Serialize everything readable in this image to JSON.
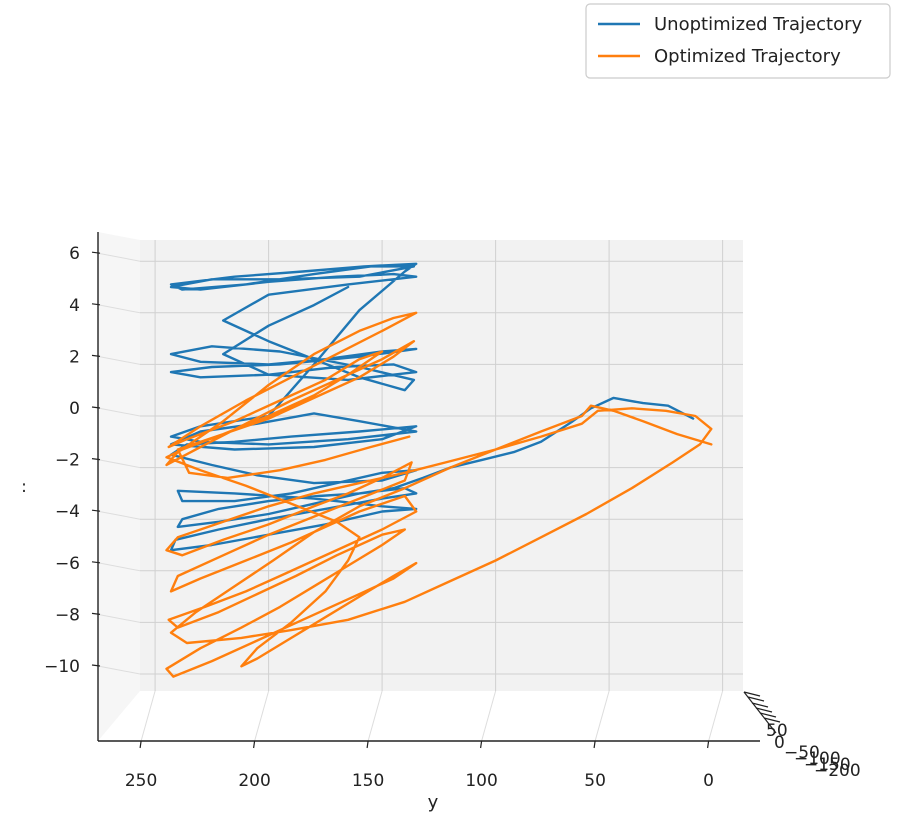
{
  "chart_data": {
    "type": "line",
    "projection": "3d",
    "title": "",
    "xlabel": "y",
    "ylabel": "",
    "zlabel": ":",
    "grid": true,
    "legend": "top-right",
    "colors": {
      "unoptimized": "#1f77b4",
      "optimized": "#ff7f0e",
      "pane": "#f2f2f2",
      "grid": "#d0d0d0"
    },
    "y_axis_ticks": [
      "250",
      "200",
      "150",
      "100",
      "50",
      "0"
    ],
    "y_range": [
      0,
      270
    ],
    "z_axis_ticks": [
      "6",
      "4",
      "2",
      "0",
      "−2",
      "−4",
      "−6",
      "−8",
      "−10"
    ],
    "z_range": [
      -11,
      7
    ],
    "x_axis_ticks": [
      "50",
      "0",
      "−50",
      "−100",
      "−150",
      "−200"
    ],
    "series": [
      {
        "name": "Unoptimized Trajectory",
        "color": "#1f77b4",
        "points": [
          [
            13,
            -0.1
          ],
          [
            24,
            0.4
          ],
          [
            35,
            0.5
          ],
          [
            48,
            0.7
          ],
          [
            58,
            0.3
          ],
          [
            66,
            -0.2
          ],
          [
            80,
            -1.0
          ],
          [
            92,
            -1.4
          ],
          [
            106,
            -1.7
          ],
          [
            120,
            -2.0
          ],
          [
            132,
            -2.4
          ],
          [
            145,
            -2.8
          ],
          [
            160,
            -3.0
          ],
          [
            178,
            -3.1
          ],
          [
            200,
            -3.3
          ],
          [
            222,
            -3.6
          ],
          [
            238,
            -4.0
          ],
          [
            240,
            -4.3
          ],
          [
            222,
            -4.1
          ],
          [
            200,
            -3.8
          ],
          [
            180,
            -3.4
          ],
          [
            160,
            -3.0
          ],
          [
            140,
            -2.8
          ],
          [
            135,
            -3.0
          ],
          [
            150,
            -3.2
          ],
          [
            175,
            -3.6
          ],
          [
            200,
            -4.0
          ],
          [
            222,
            -4.4
          ],
          [
            241,
            -4.8
          ],
          [
            243,
            -5.2
          ],
          [
            225,
            -5.0
          ],
          [
            200,
            -4.6
          ],
          [
            175,
            -4.2
          ],
          [
            150,
            -3.7
          ],
          [
            135,
            -3.6
          ],
          [
            150,
            -3.5
          ],
          [
            180,
            -3.2
          ],
          [
            215,
            -3.0
          ],
          [
            240,
            -2.9
          ],
          [
            238,
            -3.3
          ],
          [
            215,
            -3.3
          ],
          [
            190,
            -3.0
          ],
          [
            170,
            -2.6
          ],
          [
            150,
            -2.2
          ],
          [
            135,
            -2.1
          ],
          [
            150,
            -2.5
          ],
          [
            180,
            -2.6
          ],
          [
            205,
            -2.3
          ],
          [
            225,
            -1.9
          ],
          [
            243,
            -1.5
          ],
          [
            236,
            -1.1
          ],
          [
            215,
            -1.0
          ],
          [
            190,
            -0.8
          ],
          [
            160,
            -0.6
          ],
          [
            135,
            -0.4
          ],
          [
            150,
            -0.9
          ],
          [
            180,
            -1.2
          ],
          [
            215,
            -1.3
          ],
          [
            243,
            -1.1
          ],
          [
            230,
            -0.6
          ],
          [
            205,
            -0.3
          ],
          [
            180,
            0.1
          ],
          [
            160,
            -0.2
          ],
          [
            135,
            -0.6
          ],
          [
            165,
            -0.9
          ],
          [
            200,
            -1.1
          ],
          [
            230,
            -1.0
          ],
          [
            243,
            -0.8
          ],
          [
            230,
            -0.4
          ],
          [
            200,
            0.0
          ],
          [
            180,
            2.0
          ],
          [
            160,
            4.1
          ],
          [
            140,
            5.6
          ],
          [
            135,
            5.9
          ],
          [
            158,
            5.8
          ],
          [
            185,
            5.6
          ],
          [
            215,
            5.4
          ],
          [
            243,
            5.1
          ],
          [
            238,
            4.9
          ],
          [
            210,
            5.1
          ],
          [
            180,
            5.5
          ],
          [
            155,
            5.8
          ],
          [
            136,
            5.8
          ],
          [
            160,
            5.4
          ],
          [
            195,
            5.3
          ],
          [
            225,
            5.3
          ],
          [
            243,
            5.0
          ],
          [
            230,
            4.9
          ],
          [
            200,
            5.2
          ],
          [
            170,
            5.4
          ],
          [
            145,
            5.5
          ],
          [
            135,
            5.4
          ],
          [
            165,
            5.1
          ],
          [
            200,
            4.7
          ],
          [
            220,
            3.7
          ],
          [
            200,
            2.9
          ],
          [
            180,
            2.2
          ],
          [
            160,
            1.5
          ],
          [
            140,
            1.0
          ],
          [
            136,
            1.4
          ],
          [
            160,
            1.9
          ],
          [
            195,
            2.5
          ],
          [
            225,
            2.7
          ],
          [
            243,
            2.4
          ],
          [
            230,
            2.1
          ],
          [
            200,
            2.0
          ],
          [
            175,
            2.2
          ],
          [
            150,
            2.5
          ],
          [
            135,
            2.6
          ],
          [
            160,
            2.3
          ],
          [
            195,
            2.0
          ],
          [
            225,
            1.9
          ],
          [
            243,
            1.7
          ],
          [
            230,
            1.5
          ],
          [
            200,
            1.6
          ],
          [
            170,
            1.9
          ],
          [
            145,
            2.0
          ],
          [
            135,
            1.7
          ],
          [
            165,
            1.4
          ],
          [
            200,
            1.6
          ],
          [
            220,
            2.4
          ],
          [
            200,
            3.5
          ],
          [
            180,
            4.3
          ],
          [
            165,
            5.0
          ]
        ]
      },
      {
        "name": "Optimized Trajectory",
        "color": "#ff7f0e",
        "points": [
          [
            5,
            -1.1
          ],
          [
            20,
            -0.7
          ],
          [
            35,
            -0.2
          ],
          [
            48,
            0.2
          ],
          [
            58,
            0.4
          ],
          [
            62,
            0.0
          ],
          [
            80,
            -0.6
          ],
          [
            100,
            -1.3
          ],
          [
            120,
            -2.0
          ],
          [
            140,
            -2.8
          ],
          [
            160,
            -3.5
          ],
          [
            180,
            -4.5
          ],
          [
            198,
            -5.6
          ],
          [
            215,
            -6.6
          ],
          [
            232,
            -7.6
          ],
          [
            243,
            -8.4
          ],
          [
            236,
            -8.8
          ],
          [
            212,
            -8.6
          ],
          [
            190,
            -8.3
          ],
          [
            165,
            -7.9
          ],
          [
            140,
            -7.2
          ],
          [
            120,
            -6.4
          ],
          [
            100,
            -5.6
          ],
          [
            80,
            -4.7
          ],
          [
            60,
            -3.8
          ],
          [
            40,
            -2.8
          ],
          [
            22,
            -1.8
          ],
          [
            10,
            -1.1
          ],
          [
            5,
            -0.5
          ],
          [
            12,
            0.0
          ],
          [
            25,
            0.2
          ],
          [
            40,
            0.3
          ],
          [
            55,
            0.2
          ],
          [
            62,
            -0.3
          ],
          [
            80,
            -0.8
          ],
          [
            100,
            -1.3
          ],
          [
            122,
            -1.8
          ],
          [
            140,
            -2.2
          ],
          [
            160,
            -2.6
          ],
          [
            180,
            -3.0
          ],
          [
            200,
            -3.5
          ],
          [
            220,
            -4.1
          ],
          [
            240,
            -4.7
          ],
          [
            245,
            -5.2
          ],
          [
            238,
            -5.4
          ],
          [
            220,
            -4.8
          ],
          [
            200,
            -4.2
          ],
          [
            180,
            -3.5
          ],
          [
            165,
            -3.0
          ],
          [
            150,
            -2.4
          ],
          [
            137,
            -1.8
          ],
          [
            140,
            -2.5
          ],
          [
            160,
            -3.2
          ],
          [
            180,
            -3.9
          ],
          [
            200,
            -4.6
          ],
          [
            220,
            -5.4
          ],
          [
            240,
            -6.2
          ],
          [
            243,
            -6.8
          ],
          [
            230,
            -6.3
          ],
          [
            210,
            -5.6
          ],
          [
            190,
            -4.9
          ],
          [
            175,
            -4.3
          ],
          [
            160,
            -3.7
          ],
          [
            140,
            -3.1
          ],
          [
            135,
            -3.7
          ],
          [
            150,
            -4.4
          ],
          [
            165,
            -5.0
          ],
          [
            180,
            -5.6
          ],
          [
            195,
            -6.2
          ],
          [
            210,
            -6.8
          ],
          [
            228,
            -7.4
          ],
          [
            244,
            -7.9
          ],
          [
            240,
            -8.2
          ],
          [
            222,
            -7.6
          ],
          [
            205,
            -6.9
          ],
          [
            188,
            -6.2
          ],
          [
            170,
            -5.4
          ],
          [
            150,
            -4.6
          ],
          [
            140,
            -4.4
          ],
          [
            150,
            -5.0
          ],
          [
            165,
            -5.8
          ],
          [
            180,
            -6.6
          ],
          [
            195,
            -7.4
          ],
          [
            212,
            -8.2
          ],
          [
            230,
            -9.0
          ],
          [
            245,
            -9.8
          ],
          [
            242,
            -10.1
          ],
          [
            225,
            -9.5
          ],
          [
            205,
            -8.7
          ],
          [
            185,
            -7.9
          ],
          [
            165,
            -7.1
          ],
          [
            145,
            -6.3
          ],
          [
            135,
            -5.7
          ],
          [
            145,
            -6.2
          ],
          [
            160,
            -7.0
          ],
          [
            175,
            -7.8
          ],
          [
            190,
            -8.6
          ],
          [
            205,
            -9.4
          ],
          [
            212,
            -9.7
          ],
          [
            205,
            -9.0
          ],
          [
            190,
            -8.0
          ],
          [
            175,
            -6.8
          ],
          [
            165,
            -5.6
          ],
          [
            160,
            -4.7
          ],
          [
            170,
            -4.1
          ],
          [
            190,
            -3.4
          ],
          [
            210,
            -2.7
          ],
          [
            230,
            -2.1
          ],
          [
            245,
            -1.6
          ],
          [
            238,
            -1.3
          ],
          [
            220,
            -0.7
          ],
          [
            200,
            -0.1
          ],
          [
            180,
            0.7
          ],
          [
            160,
            1.5
          ],
          [
            145,
            2.3
          ],
          [
            136,
            2.9
          ],
          [
            150,
            2.2
          ],
          [
            170,
            1.4
          ],
          [
            190,
            0.6
          ],
          [
            210,
            -0.3
          ],
          [
            230,
            -1.2
          ],
          [
            245,
            -1.9
          ],
          [
            240,
            -1.4
          ],
          [
            220,
            -0.2
          ],
          [
            200,
            1.2
          ],
          [
            180,
            2.4
          ],
          [
            160,
            3.3
          ],
          [
            145,
            3.8
          ],
          [
            135,
            4.0
          ],
          [
            150,
            3.3
          ],
          [
            170,
            2.4
          ],
          [
            190,
            1.5
          ],
          [
            210,
            0.6
          ],
          [
            230,
            -0.4
          ],
          [
            244,
            -1.2
          ],
          [
            236,
            -0.9
          ],
          [
            215,
            -0.2
          ],
          [
            195,
            0.6
          ],
          [
            175,
            1.4
          ],
          [
            160,
            2.2
          ],
          [
            150,
            2.5
          ],
          [
            165,
            1.6
          ],
          [
            180,
            0.8
          ],
          [
            200,
            0.0
          ],
          [
            220,
            -0.7
          ],
          [
            240,
            -1.3
          ],
          [
            235,
            -2.2
          ],
          [
            218,
            -2.4
          ],
          [
            195,
            -2.1
          ],
          [
            175,
            -1.7
          ],
          [
            155,
            -1.2
          ],
          [
            138,
            -0.8
          ]
        ]
      }
    ]
  }
}
